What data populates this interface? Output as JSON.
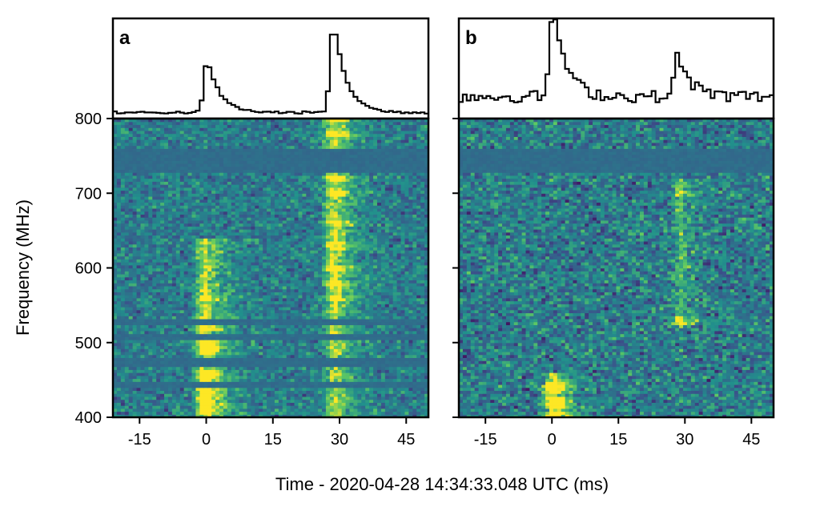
{
  "chart_data": [
    {
      "type": "heatmap",
      "panel_label": "a",
      "profile_label": "",
      "xlabel": "Time - 2020-04-28 14:34:33.048 UTC (ms)",
      "ylabel": "Frequency (MHz)",
      "xlim": [
        -21,
        50
      ],
      "ylim": [
        400,
        800
      ],
      "xticks": [
        -15,
        0,
        15,
        30,
        45
      ],
      "xtick_labels": [
        "-15",
        "0",
        "15",
        "30",
        "45"
      ],
      "yticks": [
        400,
        500,
        600,
        700,
        800
      ],
      "ytick_labels": [
        "400",
        "500",
        "600",
        "700",
        "800"
      ],
      "colormap": [
        "#440154",
        "#3b528b",
        "#21918c",
        "#5ec962",
        "#fde725"
      ],
      "profile_peaks": [
        {
          "time_ms": 0.3,
          "relative_height": 0.58
        },
        {
          "time_ms": 28.7,
          "relative_height": 1.0
        }
      ],
      "bursts": [
        {
          "time_ms": 0,
          "freq_range_mhz": [
            400,
            640
          ],
          "brightest_bands_mhz": [
            410,
            420,
            430,
            440,
            450,
            460,
            490,
            500,
            520,
            560
          ]
        },
        {
          "time_ms": 29,
          "freq_range_mhz": [
            400,
            800
          ],
          "brightest_bands_mhz": [
            560,
            580,
            600,
            630,
            660,
            700,
            720,
            780,
            800
          ]
        }
      ],
      "masked_bands_mhz": [
        [
          728,
          760
        ],
        [
          470,
          480
        ],
        [
          440,
          448
        ],
        [
          505,
          512
        ],
        [
          525,
          532
        ]
      ]
    },
    {
      "type": "heatmap",
      "panel_label": "b",
      "profile_label": "",
      "xlabel": "Time - 2020-04-28 14:34:33.048 UTC (ms)",
      "ylabel": "",
      "xlim": [
        -21,
        50
      ],
      "ylim": [
        400,
        800
      ],
      "xticks": [
        -15,
        0,
        15,
        30,
        45
      ],
      "xtick_labels": [
        "-15",
        "0",
        "15",
        "30",
        "45"
      ],
      "ytick_labels_shown": false,
      "colormap": [
        "#440154",
        "#3b528b",
        "#21918c",
        "#5ec962",
        "#fde725"
      ],
      "profile_peaks": [
        {
          "time_ms": 0.3,
          "relative_height": 1.0
        },
        {
          "time_ms": 28.5,
          "relative_height": 0.45
        }
      ],
      "bursts": [
        {
          "time_ms": 0.5,
          "freq_range_mhz": [
            400,
            460
          ],
          "brightest_bands_mhz": [
            405,
            415,
            425,
            435,
            445
          ]
        },
        {
          "time_ms": 29,
          "freq_range_mhz": [
            520,
            720
          ],
          "brightest_bands_mhz": [
            530,
            700
          ]
        }
      ],
      "masked_bands_mhz": [
        [
          728,
          760
        ]
      ]
    }
  ]
}
